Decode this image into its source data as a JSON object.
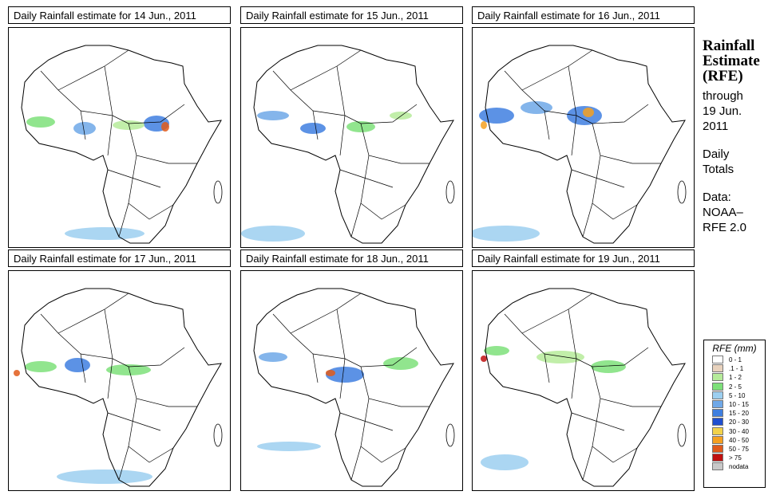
{
  "panels": [
    {
      "title": "Daily Rainfall estimate for  14 Jun., 2011"
    },
    {
      "title": "Daily Rainfall estimate for  15 Jun., 2011"
    },
    {
      "title": "Daily Rainfall estimate for  16 Jun., 2011"
    },
    {
      "title": "Daily Rainfall estimate for  17 Jun., 2011"
    },
    {
      "title": "Daily Rainfall estimate for  18 Jun., 2011"
    },
    {
      "title": "Daily Rainfall estimate for  19 Jun., 2011"
    }
  ],
  "sidebar": {
    "title_line1": "Rainfall",
    "title_line2": "Estimate",
    "title_line3": "(RFE)",
    "through_label": "through",
    "through_date1": "19 Jun.",
    "through_date2": "2011",
    "totals_line1": "Daily",
    "totals_line2": "Totals",
    "data_label": "Data:",
    "data_source1": "NOAA–",
    "data_source2": "RFE 2.0"
  },
  "legend": {
    "title": "RFE (mm)",
    "items": [
      {
        "label": "0 - 1",
        "color": "#ffffff"
      },
      {
        "label": ".1 - 1",
        "color": "#e8d2bd"
      },
      {
        "label": "1 - 2",
        "color": "#b6eb9a"
      },
      {
        "label": "2 - 5",
        "color": "#7ee07a"
      },
      {
        "label": "5 - 10",
        "color": "#9ccff0"
      },
      {
        "label": "10 - 15",
        "color": "#6fa8e8"
      },
      {
        "label": "15 - 20",
        "color": "#3f7fe0"
      },
      {
        "label": "20 - 30",
        "color": "#1f4fd0"
      },
      {
        "label": "30 - 40",
        "color": "#f2d24a"
      },
      {
        "label": "40 - 50",
        "color": "#f5a020"
      },
      {
        "label": "50 - 75",
        "color": "#e05a1a"
      },
      {
        "label": "> 75",
        "color": "#c01010"
      },
      {
        "label": "nodata",
        "color": "#c8c8c8"
      }
    ]
  }
}
